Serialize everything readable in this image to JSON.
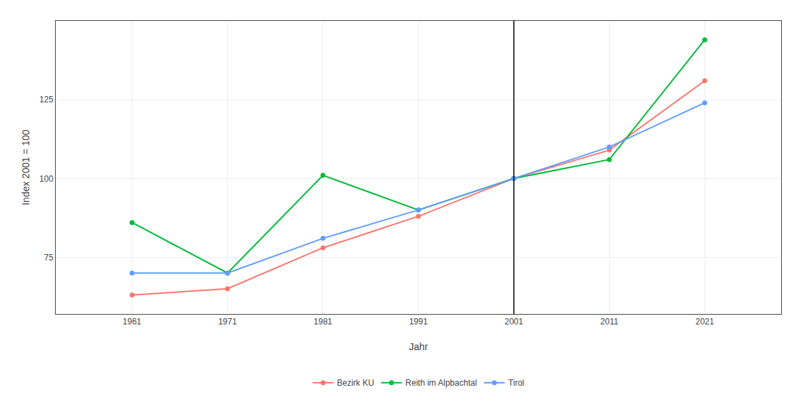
{
  "chart_data": {
    "type": "line",
    "x": [
      1961,
      1971,
      1981,
      1991,
      2001,
      2011,
      2021
    ],
    "series": [
      {
        "name": "Bezirk KU",
        "color": "#F8766D",
        "marker": "circle",
        "values": [
          63,
          65,
          78,
          88,
          100,
          109,
          131
        ]
      },
      {
        "name": "Reith im Alpbachtal",
        "color": "#00BA38",
        "marker": "circle",
        "values": [
          86,
          70,
          101,
          90,
          100,
          106,
          144
        ]
      },
      {
        "name": "Tirol",
        "color": "#619CFF",
        "marker": "circle",
        "values": [
          70,
          70,
          81,
          90,
          100,
          110,
          124
        ]
      }
    ],
    "vline_x": 2001,
    "xlabel": "Jahr",
    "ylabel": "Index 2001 = 100",
    "xlim": [
      1953,
      2029
    ],
    "ylim": [
      57,
      150
    ],
    "xticks": [
      1961,
      1971,
      1981,
      1991,
      2001,
      2011,
      2021
    ],
    "yticks": [
      75,
      100,
      125
    ],
    "grid": true,
    "legend": "bottom"
  }
}
